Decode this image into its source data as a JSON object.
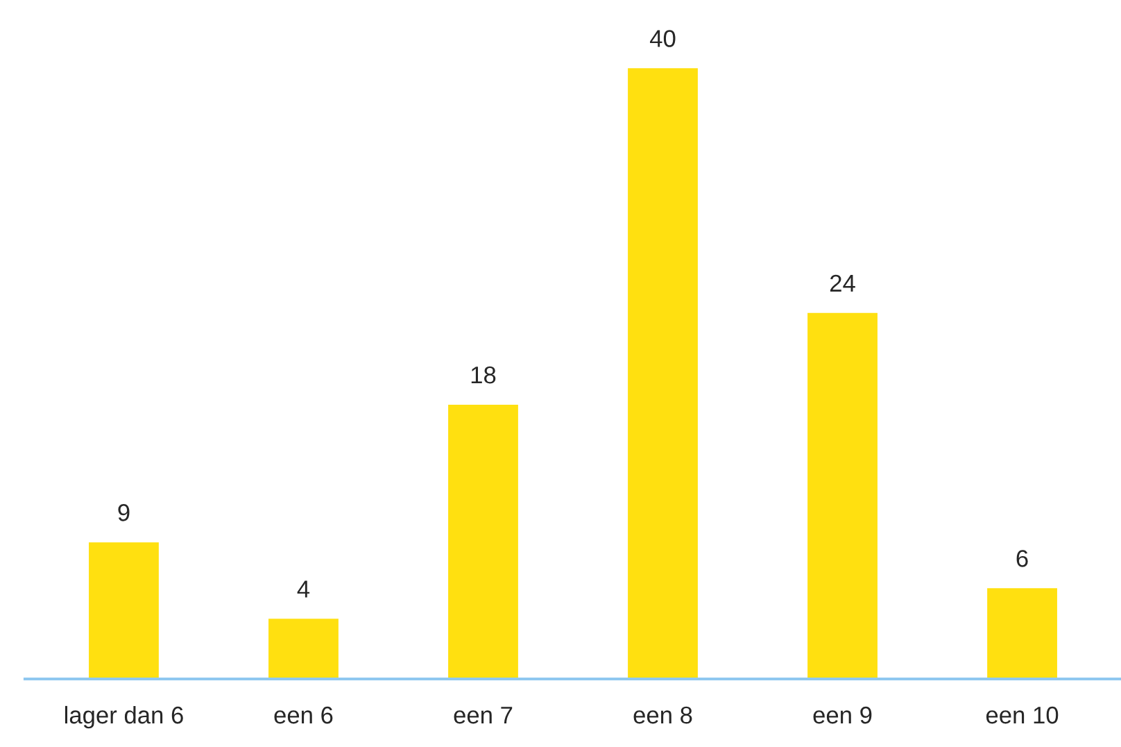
{
  "chart_data": {
    "type": "bar",
    "categories": [
      "lager dan 6",
      "een 6",
      "een 7",
      "een 8",
      "een 9",
      "een 10"
    ],
    "values": [
      9,
      4,
      18,
      40,
      24,
      6
    ],
    "color": "#ffe010",
    "data_labels": true
  }
}
